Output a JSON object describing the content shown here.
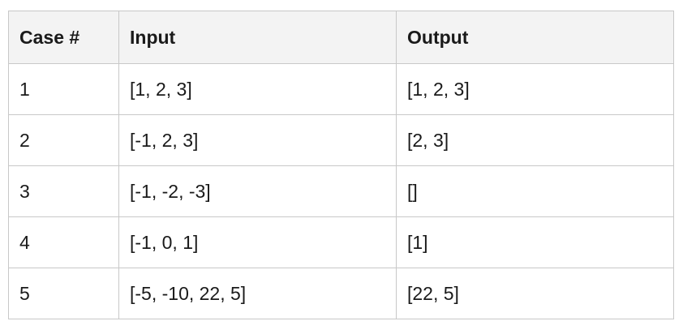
{
  "table": {
    "headers": [
      "Case #",
      "Input",
      "Output"
    ],
    "rows": [
      {
        "case": "1",
        "input": "[1, 2, 3]",
        "output": "[1, 2, 3]"
      },
      {
        "case": "2",
        "input": "[-1, 2, 3]",
        "output": "[2, 3]"
      },
      {
        "case": "3",
        "input": "[-1, -2, -3]",
        "output": "[]"
      },
      {
        "case": "4",
        "input": "[-1, 0, 1]",
        "output": "[1]"
      },
      {
        "case": "5",
        "input": "[-5, -10, 22, 5]",
        "output": "[22, 5]"
      }
    ]
  },
  "colors": {
    "header_background": "#f3f3f3",
    "border": "#c8c8c8",
    "text": "#1a1a1a"
  }
}
